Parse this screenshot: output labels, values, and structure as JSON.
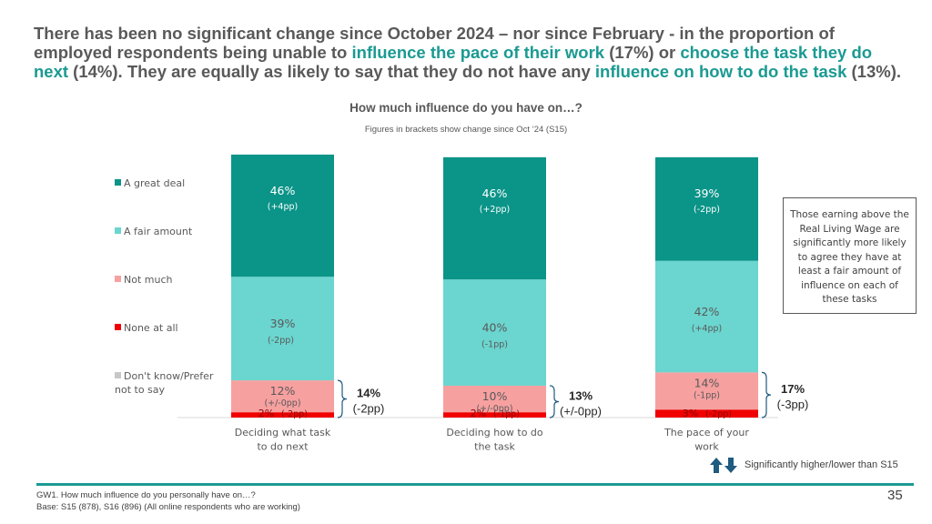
{
  "headline": {
    "p1": "There has been no significant change since October 2024 – nor since February - in the proportion of employed respondents being unable to ",
    "h1": "influence the pace of their work",
    "p2": " (17%) or ",
    "h2": "choose the task they do next",
    "p3": " (14%). They are equally as likely to say that they do not have any ",
    "h3": "influence on how to do the task",
    "p4": " (13%)."
  },
  "colors": {
    "accent": "#1a9a92",
    "great_deal": "#0b9488",
    "fair_amount": "#6bd5cf",
    "not_much": "#f7a0a0",
    "none_at_all": "#f00000",
    "dont_know": "#c7c7c7"
  },
  "chart_data": {
    "type": "bar",
    "stacked": true,
    "title": "How much influence do you have on…?",
    "note": "Figures in brackets show change since Oct ‘24 (S15)",
    "categories": [
      "Deciding what task\nto do next",
      "Deciding how to do\nthe task",
      "The pace of your\nwork"
    ],
    "series": [
      {
        "name": "Don't know/Prefer not to say",
        "values": [
          0,
          0,
          0
        ],
        "labels": [
          "",
          "",
          ""
        ],
        "changes": [
          "",
          "",
          ""
        ]
      },
      {
        "name": "None at all",
        "values": [
          2,
          2,
          3
        ],
        "labels": [
          "2%",
          "2%",
          "3%"
        ],
        "changes": [
          "(-2pp)",
          "(-1pp)",
          "(-2pp)"
        ]
      },
      {
        "name": "Not much",
        "values": [
          12,
          10,
          14
        ],
        "labels": [
          "12%",
          "10%",
          "14%"
        ],
        "changes": [
          "(+/-0pp)",
          "(+/-0pp)",
          "(-1pp)"
        ]
      },
      {
        "name": "A fair amount",
        "values": [
          39,
          40,
          42
        ],
        "labels": [
          "39%",
          "40%",
          "42%"
        ],
        "changes": [
          "(-2pp)",
          "(-1pp)",
          "(+4pp)"
        ]
      },
      {
        "name": "A great deal",
        "values": [
          46,
          46,
          39
        ],
        "labels": [
          "46%",
          "46%",
          "39%"
        ],
        "changes": [
          "(+4pp)",
          "(+2pp)",
          "(-2pp)"
        ]
      }
    ],
    "net_negative": [
      {
        "value": "14%",
        "change": "(-2pp)"
      },
      {
        "value": "13%",
        "change": "(+/-0pp)"
      },
      {
        "value": "17%",
        "change": "(-3pp)"
      }
    ],
    "legend": [
      "A great deal",
      "A fair amount",
      "Not much",
      "None at all",
      "Don't know/Prefer not to say"
    ],
    "legend_labels": [
      "A great deal",
      "A fair amount",
      "Not much",
      "None at all",
      "Don't know/Prefer\nnot to say"
    ],
    "ylim": [
      0,
      100
    ]
  },
  "callout": "Those earning above the Real Living Wage are significantly more likely to agree they have at least a fair amount of influence on each of these tasks",
  "sig_legend": "Significantly higher/lower than S15",
  "footer": {
    "question": "GW1. How much influence do you personally have on…?",
    "base": "Base: S15 (878), S16 (896) (All online respondents who are working)"
  },
  "page_number": "35"
}
